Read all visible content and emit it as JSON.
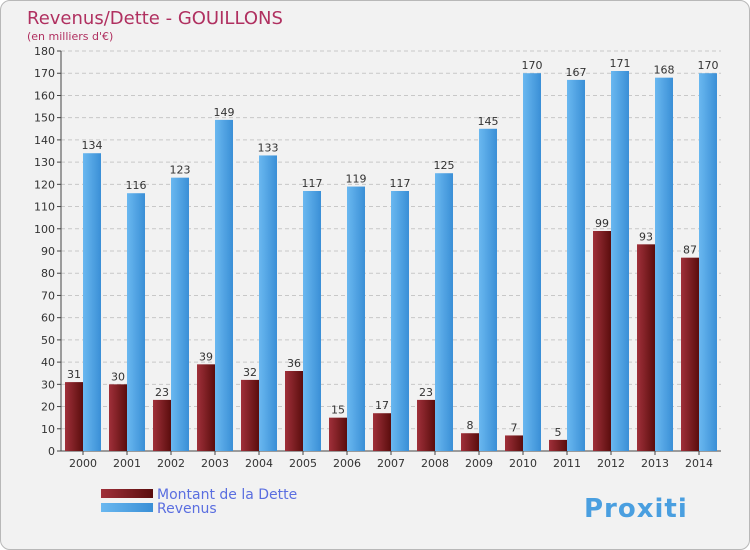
{
  "chart_data": {
    "type": "bar",
    "title": "Revenus/Dette - GOUILLONS",
    "subtitle": "(en milliers d'€)",
    "categories": [
      "2000",
      "2001",
      "2002",
      "2003",
      "2004",
      "2005",
      "2006",
      "2007",
      "2008",
      "2009",
      "2010",
      "2011",
      "2012",
      "2013",
      "2014"
    ],
    "series": [
      {
        "name": "Montant de la Dette",
        "color": "#7a1a1a",
        "values": [
          31,
          30,
          23,
          39,
          32,
          36,
          15,
          17,
          23,
          8,
          7,
          5,
          99,
          93,
          87
        ]
      },
      {
        "name": "Revenus",
        "color": "#4a9fe0",
        "values": [
          134,
          116,
          123,
          149,
          133,
          117,
          119,
          117,
          125,
          145,
          170,
          167,
          171,
          168,
          170
        ]
      }
    ],
    "ylim": [
      0,
      180
    ],
    "ytick_step": 10,
    "grid": true,
    "legend_position": "bottom-left",
    "colors": {
      "title": "#b03060",
      "legend_text": "#5a6ee0"
    }
  },
  "branding": {
    "logo_text": "Proxiti"
  }
}
